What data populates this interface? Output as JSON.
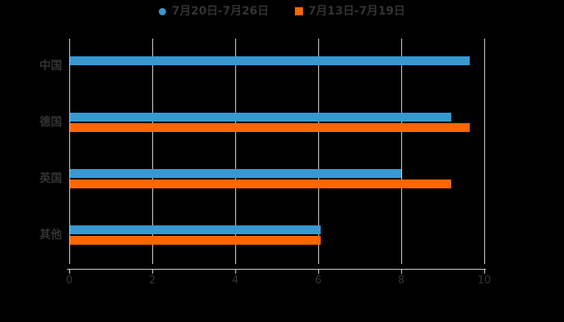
{
  "background_color": "#000000",
  "text_color": "#333333",
  "grid_color": "#cfcfcf",
  "chart_data": {
    "type": "bar",
    "orientation": "horizontal",
    "title": "",
    "xlabel": "",
    "ylabel": "",
    "categories": [
      "中国",
      "德国",
      "英国",
      "其他"
    ],
    "series": [
      {
        "name": "7月20日-7月26日",
        "color": "#3899d1",
        "marker": "circle",
        "values": [
          9.65,
          9.2,
          8.0,
          6.05
        ]
      },
      {
        "name": "7月13日-7月19日",
        "color": "#ff6600",
        "marker": "square",
        "values": [
          null,
          9.65,
          9.2,
          6.05
        ]
      }
    ],
    "xlim": [
      0,
      10
    ],
    "x_ticks": [
      0,
      2,
      4,
      6,
      8,
      10
    ],
    "grid": "vertical",
    "legend_position": "top"
  }
}
